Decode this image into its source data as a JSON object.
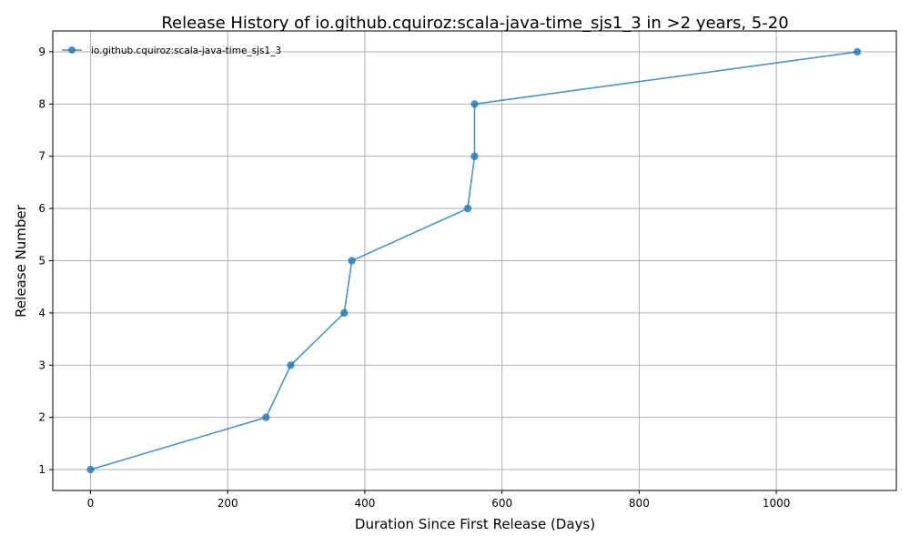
{
  "chart_data": {
    "type": "line",
    "title": "Release History of io.github.cquiroz:scala-java-time_sjs1_3 in >2 years, 5-20",
    "xlabel": "Duration Since First Release (Days)",
    "ylabel": "Release Number",
    "xlim": [
      -55,
      1175
    ],
    "ylim": [
      0.6,
      9.4
    ],
    "xticks": [
      0,
      200,
      400,
      600,
      800,
      1000
    ],
    "yticks": [
      1,
      2,
      3,
      4,
      5,
      6,
      7,
      8,
      9
    ],
    "grid": true,
    "legend_position": "top-left",
    "series": [
      {
        "name": "io.github.cquiroz:scala-java-time_sjs1_3",
        "color": "#1f77b4",
        "x": [
          0,
          256,
          292,
          370,
          381,
          550,
          560,
          560,
          1118
        ],
        "y": [
          1,
          2,
          3,
          4,
          5,
          6,
          7,
          8,
          9
        ]
      }
    ]
  }
}
